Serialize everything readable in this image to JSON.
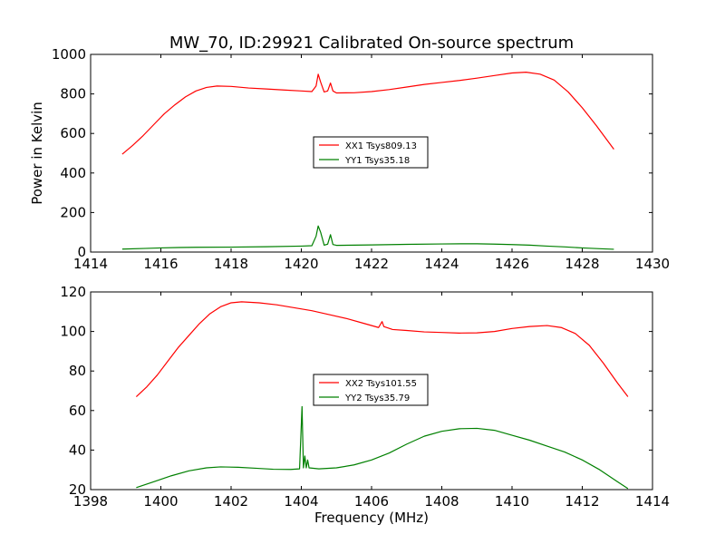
{
  "title": "MW_70, ID:29921 Calibrated On-source spectrum",
  "chart_data": [
    {
      "type": "line",
      "ylabel": "Power in Kelvin",
      "xlabel": "",
      "xlim": [
        1414,
        1430
      ],
      "ylim": [
        0,
        1000
      ],
      "x_ticks": [
        1414,
        1416,
        1418,
        1420,
        1422,
        1424,
        1426,
        1428,
        1430
      ],
      "y_ticks": [
        0,
        200,
        400,
        600,
        800,
        1000
      ],
      "legend": {
        "position": "center"
      },
      "series": [
        {
          "name": "XX1 Tsys809.13",
          "color": "#ff0000",
          "points": [
            [
              1414.9,
              495
            ],
            [
              1415.2,
              540
            ],
            [
              1415.5,
              590
            ],
            [
              1415.8,
              645
            ],
            [
              1416.1,
              700
            ],
            [
              1416.4,
              745
            ],
            [
              1416.7,
              785
            ],
            [
              1417.0,
              815
            ],
            [
              1417.3,
              833
            ],
            [
              1417.6,
              840
            ],
            [
              1418.0,
              838
            ],
            [
              1418.5,
              830
            ],
            [
              1419.0,
              825
            ],
            [
              1419.5,
              820
            ],
            [
              1420.0,
              815
            ],
            [
              1420.3,
              812
            ],
            [
              1420.42,
              840
            ],
            [
              1420.48,
              900
            ],
            [
              1420.55,
              860
            ],
            [
              1420.65,
              810
            ],
            [
              1420.75,
              815
            ],
            [
              1420.83,
              855
            ],
            [
              1420.9,
              815
            ],
            [
              1421.0,
              805
            ],
            [
              1421.5,
              806
            ],
            [
              1422.0,
              812
            ],
            [
              1422.5,
              822
            ],
            [
              1423.0,
              835
            ],
            [
              1423.5,
              848
            ],
            [
              1424.0,
              858
            ],
            [
              1424.5,
              868
            ],
            [
              1425.0,
              880
            ],
            [
              1425.5,
              893
            ],
            [
              1426.0,
              906
            ],
            [
              1426.4,
              910
            ],
            [
              1426.8,
              900
            ],
            [
              1427.2,
              870
            ],
            [
              1427.6,
              810
            ],
            [
              1428.0,
              730
            ],
            [
              1428.4,
              640
            ],
            [
              1428.9,
              520
            ]
          ]
        },
        {
          "name": "YY1 Tsys35.18",
          "color": "#008000",
          "points": [
            [
              1414.9,
              15
            ],
            [
              1415.5,
              18
            ],
            [
              1416.0,
              21
            ],
            [
              1416.5,
              23
            ],
            [
              1417.0,
              24
            ],
            [
              1418.0,
              25
            ],
            [
              1419.0,
              27
            ],
            [
              1420.0,
              30
            ],
            [
              1420.3,
              32
            ],
            [
              1420.42,
              80
            ],
            [
              1420.48,
              132
            ],
            [
              1420.55,
              100
            ],
            [
              1420.65,
              35
            ],
            [
              1420.75,
              40
            ],
            [
              1420.83,
              88
            ],
            [
              1420.9,
              38
            ],
            [
              1421.0,
              34
            ],
            [
              1422.0,
              36
            ],
            [
              1423.0,
              39
            ],
            [
              1424.0,
              41
            ],
            [
              1424.6,
              42
            ],
            [
              1425.0,
              42
            ],
            [
              1425.5,
              40
            ],
            [
              1426.0,
              38
            ],
            [
              1426.5,
              35
            ],
            [
              1427.0,
              30
            ],
            [
              1427.5,
              26
            ],
            [
              1428.0,
              21
            ],
            [
              1428.5,
              17
            ],
            [
              1428.9,
              14
            ]
          ]
        }
      ]
    },
    {
      "type": "line",
      "ylabel": "",
      "xlabel": "Frequency (MHz)",
      "xlim": [
        1398,
        1414
      ],
      "ylim": [
        20,
        120
      ],
      "x_ticks": [
        1398,
        1400,
        1402,
        1404,
        1406,
        1408,
        1410,
        1412,
        1414
      ],
      "y_ticks": [
        20,
        40,
        60,
        80,
        100,
        120
      ],
      "legend": {
        "position": "center"
      },
      "series": [
        {
          "name": "XX2 Tsys101.55",
          "color": "#ff0000",
          "points": [
            [
              1399.3,
              67
            ],
            [
              1399.6,
              72
            ],
            [
              1399.9,
              78
            ],
            [
              1400.2,
              85
            ],
            [
              1400.5,
              92
            ],
            [
              1400.8,
              98
            ],
            [
              1401.1,
              104
            ],
            [
              1401.4,
              109
            ],
            [
              1401.7,
              112.5
            ],
            [
              1402.0,
              114.5
            ],
            [
              1402.3,
              115
            ],
            [
              1402.8,
              114.5
            ],
            [
              1403.3,
              113.5
            ],
            [
              1403.8,
              112
            ],
            [
              1404.3,
              110.5
            ],
            [
              1404.8,
              108.5
            ],
            [
              1405.3,
              106.5
            ],
            [
              1405.8,
              104
            ],
            [
              1406.2,
              102
            ],
            [
              1406.3,
              105
            ],
            [
              1406.35,
              102.5
            ],
            [
              1406.6,
              101
            ],
            [
              1407.0,
              100.5
            ],
            [
              1407.5,
              99.8
            ],
            [
              1408.0,
              99.5
            ],
            [
              1408.5,
              99.2
            ],
            [
              1409.0,
              99.3
            ],
            [
              1409.5,
              100
            ],
            [
              1410.0,
              101.5
            ],
            [
              1410.5,
              102.5
            ],
            [
              1411.0,
              103
            ],
            [
              1411.4,
              102
            ],
            [
              1411.8,
              99
            ],
            [
              1412.2,
              93
            ],
            [
              1412.6,
              84
            ],
            [
              1413.0,
              74
            ],
            [
              1413.3,
              67
            ]
          ]
        },
        {
          "name": "YY2 Tsys35.79",
          "color": "#008000",
          "points": [
            [
              1399.3,
              21
            ],
            [
              1399.8,
              24
            ],
            [
              1400.3,
              27
            ],
            [
              1400.8,
              29.5
            ],
            [
              1401.3,
              31
            ],
            [
              1401.7,
              31.5
            ],
            [
              1402.2,
              31.3
            ],
            [
              1402.7,
              30.8
            ],
            [
              1403.2,
              30.3
            ],
            [
              1403.7,
              30.2
            ],
            [
              1403.95,
              30.5
            ],
            [
              1404.02,
              62
            ],
            [
              1404.06,
              31
            ],
            [
              1404.1,
              37
            ],
            [
              1404.14,
              31
            ],
            [
              1404.18,
              35
            ],
            [
              1404.22,
              31
            ],
            [
              1404.5,
              30.5
            ],
            [
              1405.0,
              31
            ],
            [
              1405.5,
              32.5
            ],
            [
              1406.0,
              35
            ],
            [
              1406.5,
              38.5
            ],
            [
              1407.0,
              43
            ],
            [
              1407.5,
              47
            ],
            [
              1408.0,
              49.5
            ],
            [
              1408.5,
              50.8
            ],
            [
              1409.0,
              51
            ],
            [
              1409.5,
              50
            ],
            [
              1410.0,
              47.5
            ],
            [
              1410.5,
              45
            ],
            [
              1411.0,
              42
            ],
            [
              1411.5,
              39
            ],
            [
              1412.0,
              35
            ],
            [
              1412.5,
              30
            ],
            [
              1413.0,
              24
            ],
            [
              1413.3,
              20.5
            ]
          ]
        }
      ]
    }
  ]
}
